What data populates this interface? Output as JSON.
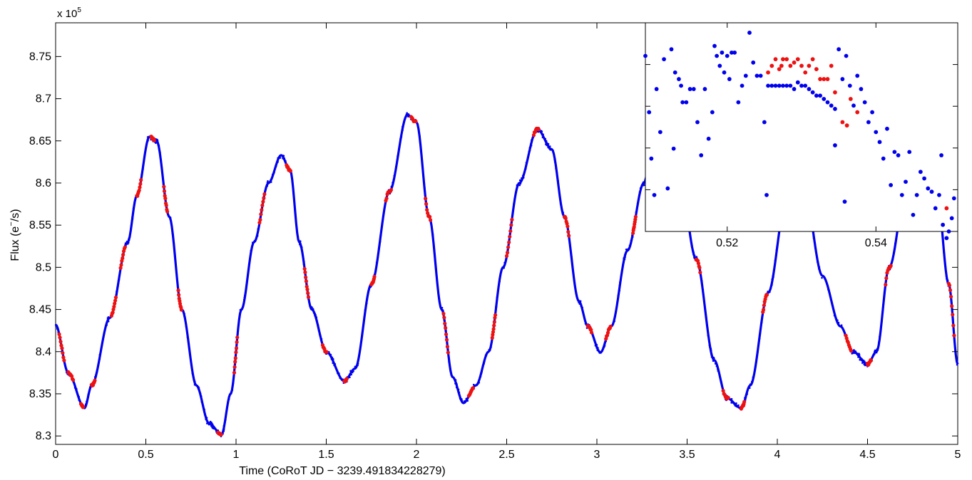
{
  "chart_data": [
    {
      "type": "scatter",
      "xlabel": "Time (CoRoT JD − 3239.491834228279)",
      "ylabel_base": "Flux (e",
      "ylabel_sup": "−",
      "ylabel_tail": "/s)",
      "y_exponent_label": "x 10",
      "y_exponent_power": "5",
      "xlim": [
        0,
        5
      ],
      "ylim": [
        8.29,
        8.79
      ],
      "x_ticks": [
        0,
        0.5,
        1,
        1.5,
        2,
        2.5,
        3,
        3.5,
        4,
        4.5,
        5
      ],
      "x_tick_labels": [
        "0",
        "0.5",
        "1",
        "1.5",
        "2",
        "2.5",
        "3",
        "3.5",
        "4",
        "4.5",
        "5"
      ],
      "y_ticks": [
        8.3,
        8.35,
        8.4,
        8.45,
        8.5,
        8.55,
        8.6,
        8.65,
        8.7,
        8.75
      ],
      "y_tick_labels": [
        "8.3",
        "8.35",
        "8.4",
        "8.45",
        "8.5",
        "8.55",
        "8.6",
        "8.65",
        "8.7",
        "8.75"
      ],
      "grid": false,
      "series": [
        {
          "color": "#0000ee",
          "marker": "dot",
          "curve_keypoints": [
            [
              0.0,
              8.432
            ],
            [
              0.07,
              8.375
            ],
            [
              0.16,
              8.333
            ],
            [
              0.2,
              8.36
            ],
            [
              0.3,
              8.44
            ],
            [
              0.4,
              8.53
            ],
            [
              0.45,
              8.585
            ],
            [
              0.52,
              8.655
            ],
            [
              0.56,
              8.65
            ],
            [
              0.63,
              8.56
            ],
            [
              0.7,
              8.45
            ],
            [
              0.78,
              8.36
            ],
            [
              0.85,
              8.315
            ],
            [
              0.92,
              8.302
            ],
            [
              0.97,
              8.35
            ],
            [
              1.03,
              8.45
            ],
            [
              1.1,
              8.53
            ],
            [
              1.18,
              8.6
            ],
            [
              1.25,
              8.633
            ],
            [
              1.3,
              8.615
            ],
            [
              1.35,
              8.53
            ],
            [
              1.42,
              8.45
            ],
            [
              1.5,
              8.4
            ],
            [
              1.6,
              8.365
            ],
            [
              1.66,
              8.38
            ],
            [
              1.75,
              8.48
            ],
            [
              1.85,
              8.59
            ],
            [
              1.95,
              8.681
            ],
            [
              2.0,
              8.672
            ],
            [
              2.07,
              8.56
            ],
            [
              2.14,
              8.45
            ],
            [
              2.2,
              8.37
            ],
            [
              2.26,
              8.339
            ],
            [
              2.33,
              8.36
            ],
            [
              2.4,
              8.4
            ],
            [
              2.48,
              8.5
            ],
            [
              2.57,
              8.6
            ],
            [
              2.67,
              8.664
            ],
            [
              2.75,
              8.64
            ],
            [
              2.82,
              8.56
            ],
            [
              2.9,
              8.46
            ],
            [
              2.95,
              8.43
            ],
            [
              3.02,
              8.399
            ],
            [
              3.08,
              8.43
            ],
            [
              3.17,
              8.52
            ],
            [
              3.26,
              8.6
            ],
            [
              3.32,
              8.66
            ],
            [
              3.45,
              8.62
            ],
            [
              3.55,
              8.51
            ],
            [
              3.65,
              8.39
            ],
            [
              3.72,
              8.345
            ],
            [
              3.8,
              8.333
            ],
            [
              3.85,
              8.36
            ],
            [
              3.95,
              8.47
            ],
            [
              4.05,
              8.58
            ],
            [
              4.15,
              8.59
            ],
            [
              4.25,
              8.49
            ],
            [
              4.35,
              8.43
            ],
            [
              4.42,
              8.4
            ],
            [
              4.5,
              8.385
            ],
            [
              4.55,
              8.4
            ],
            [
              4.62,
              8.5
            ],
            [
              4.72,
              8.6
            ],
            [
              4.8,
              8.66
            ],
            [
              4.88,
              8.6
            ],
            [
              4.95,
              8.48
            ],
            [
              5.0,
              8.385
            ]
          ]
        },
        {
          "color": "#ee1111",
          "marker": "dot",
          "segment_x": [
            0.02,
            0.07,
            0.14,
            0.2,
            0.31,
            0.36,
            0.45,
            0.53,
            0.6,
            0.68,
            0.9,
            0.99,
            1.13,
            1.28,
            1.38,
            1.48,
            1.6,
            1.75,
            1.83,
            1.97,
            2.05,
            2.15,
            2.29,
            2.42,
            2.5,
            2.65,
            2.82,
            2.95,
            3.05,
            3.2,
            3.45,
            3.55,
            3.7,
            3.8,
            3.92,
            4.05,
            4.38,
            4.5,
            4.6,
            4.95
          ]
        }
      ]
    },
    {
      "type": "scatter",
      "role": "inset",
      "xlim": [
        0.509,
        0.551
      ],
      "ylim": [
        8.6522,
        8.6585
      ],
      "x_ticks": [
        0.52,
        0.54
      ],
      "x_tick_labels": [
        "0.52",
        "0.54"
      ],
      "blue_points": [
        [
          0.509,
          8.6575
        ],
        [
          0.5095,
          8.6558
        ],
        [
          0.5098,
          8.6544
        ],
        [
          0.5102,
          8.6533
        ],
        [
          0.5105,
          8.6565
        ],
        [
          0.511,
          8.6552
        ],
        [
          0.5115,
          8.6574
        ],
        [
          0.512,
          8.6535
        ],
        [
          0.5125,
          8.6577
        ],
        [
          0.5128,
          8.6547
        ],
        [
          0.513,
          8.657
        ],
        [
          0.5135,
          8.6568
        ],
        [
          0.5138,
          8.6566
        ],
        [
          0.514,
          8.6561
        ],
        [
          0.5145,
          8.6561
        ],
        [
          0.515,
          8.6565
        ],
        [
          0.5155,
          8.6565
        ],
        [
          0.516,
          8.6555
        ],
        [
          0.5165,
          8.6545
        ],
        [
          0.517,
          8.6565
        ],
        [
          0.5175,
          8.655
        ],
        [
          0.518,
          8.6558
        ],
        [
          0.5183,
          8.6578
        ],
        [
          0.5186,
          8.6575
        ],
        [
          0.519,
          8.6572
        ],
        [
          0.5193,
          8.6576
        ],
        [
          0.5196,
          8.657
        ],
        [
          0.52,
          8.6575
        ],
        [
          0.5203,
          8.6568
        ],
        [
          0.5206,
          8.6576
        ],
        [
          0.521,
          8.6576
        ],
        [
          0.5215,
          8.6561
        ],
        [
          0.522,
          8.6566
        ],
        [
          0.5225,
          8.6569
        ],
        [
          0.523,
          8.6582
        ],
        [
          0.5235,
          8.6573
        ],
        [
          0.524,
          8.6569
        ],
        [
          0.5245,
          8.6569
        ],
        [
          0.525,
          8.6555
        ],
        [
          0.5253,
          8.6533
        ],
        [
          0.5345,
          8.6548
        ],
        [
          0.535,
          8.6577
        ],
        [
          0.5355,
          8.6568
        ],
        [
          0.5358,
          8.6531
        ],
        [
          0.536,
          8.6575
        ],
        [
          0.5365,
          8.6566
        ],
        [
          0.537,
          8.656
        ],
        [
          0.5375,
          8.6569
        ],
        [
          0.538,
          8.6565
        ],
        [
          0.5385,
          8.6561
        ],
        [
          0.539,
          8.6555
        ],
        [
          0.5395,
          8.6558
        ],
        [
          0.54,
          8.6552
        ],
        [
          0.5405,
          8.6549
        ],
        [
          0.541,
          8.6544
        ],
        [
          0.5415,
          8.6553
        ],
        [
          0.542,
          8.6536
        ],
        [
          0.5425,
          8.6546
        ],
        [
          0.543,
          8.6545
        ],
        [
          0.5435,
          8.6533
        ],
        [
          0.544,
          8.6537
        ],
        [
          0.5445,
          8.6546
        ],
        [
          0.545,
          8.6527
        ],
        [
          0.5455,
          8.6533
        ],
        [
          0.546,
          8.654
        ],
        [
          0.5465,
          8.6538
        ],
        [
          0.547,
          8.6535
        ],
        [
          0.5475,
          8.6534
        ],
        [
          0.548,
          8.6529
        ],
        [
          0.5485,
          8.6533
        ],
        [
          0.5488,
          8.6545
        ],
        [
          0.549,
          8.6524
        ],
        [
          0.5495,
          8.652
        ],
        [
          0.5498,
          8.6522
        ],
        [
          0.5502,
          8.6526
        ],
        [
          0.5505,
          8.6532
        ]
      ],
      "blue_line_points": [
        [
          0.5255,
          8.6566
        ],
        [
          0.526,
          8.6566
        ],
        [
          0.5265,
          8.6566
        ],
        [
          0.527,
          8.6566
        ],
        [
          0.5275,
          8.6566
        ],
        [
          0.528,
          8.6566
        ],
        [
          0.5285,
          8.6566
        ],
        [
          0.529,
          8.6565
        ],
        [
          0.5295,
          8.6567
        ],
        [
          0.53,
          8.6566
        ],
        [
          0.5305,
          8.6566
        ],
        [
          0.531,
          8.6565
        ],
        [
          0.5315,
          8.6564
        ],
        [
          0.532,
          8.6563
        ],
        [
          0.5325,
          8.6563
        ],
        [
          0.533,
          8.6562
        ],
        [
          0.5335,
          8.6561
        ],
        [
          0.534,
          8.656
        ],
        [
          0.5345,
          8.6559
        ]
      ],
      "red_points": [
        [
          0.5255,
          8.657
        ],
        [
          0.526,
          8.6572
        ],
        [
          0.5265,
          8.6574
        ],
        [
          0.527,
          8.6571
        ],
        [
          0.5273,
          8.6572
        ],
        [
          0.5275,
          8.6574
        ],
        [
          0.528,
          8.6574
        ],
        [
          0.5285,
          8.6572
        ],
        [
          0.529,
          8.6573
        ],
        [
          0.5295,
          8.6574
        ],
        [
          0.53,
          8.6572
        ],
        [
          0.5305,
          8.657
        ],
        [
          0.531,
          8.6572
        ],
        [
          0.5315,
          8.6574
        ],
        [
          0.532,
          8.6571
        ],
        [
          0.5325,
          8.6568
        ],
        [
          0.533,
          8.6568
        ],
        [
          0.5335,
          8.6568
        ],
        [
          0.534,
          8.6572
        ],
        [
          0.5345,
          8.6564
        ],
        [
          0.5355,
          8.6555
        ],
        [
          0.5361,
          8.6554
        ],
        [
          0.5366,
          8.6562
        ],
        [
          0.5375,
          8.6558
        ],
        [
          0.5495,
          8.6529
        ]
      ]
    }
  ]
}
